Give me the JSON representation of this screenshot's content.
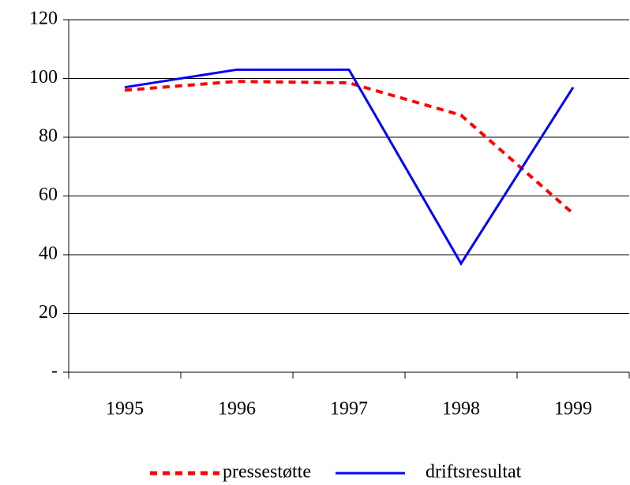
{
  "chart_data": {
    "type": "line",
    "categories": [
      "1995",
      "1996",
      "1997",
      "1998",
      "1999"
    ],
    "series": [
      {
        "name": "pressestøtte",
        "color": "#ff0000",
        "dash": true,
        "values": [
          96,
          99,
          98.5,
          87.5,
          54
        ]
      },
      {
        "name": "driftsresultat",
        "color": "#0000ff",
        "dash": false,
        "values": [
          97,
          103,
          103,
          37,
          97
        ]
      }
    ],
    "ylim": [
      0,
      120
    ],
    "yticks": [
      {
        "value": 0,
        "label": "-"
      },
      20,
      40,
      60,
      80,
      100,
      120
    ],
    "grid": true,
    "legend": "bottom"
  }
}
